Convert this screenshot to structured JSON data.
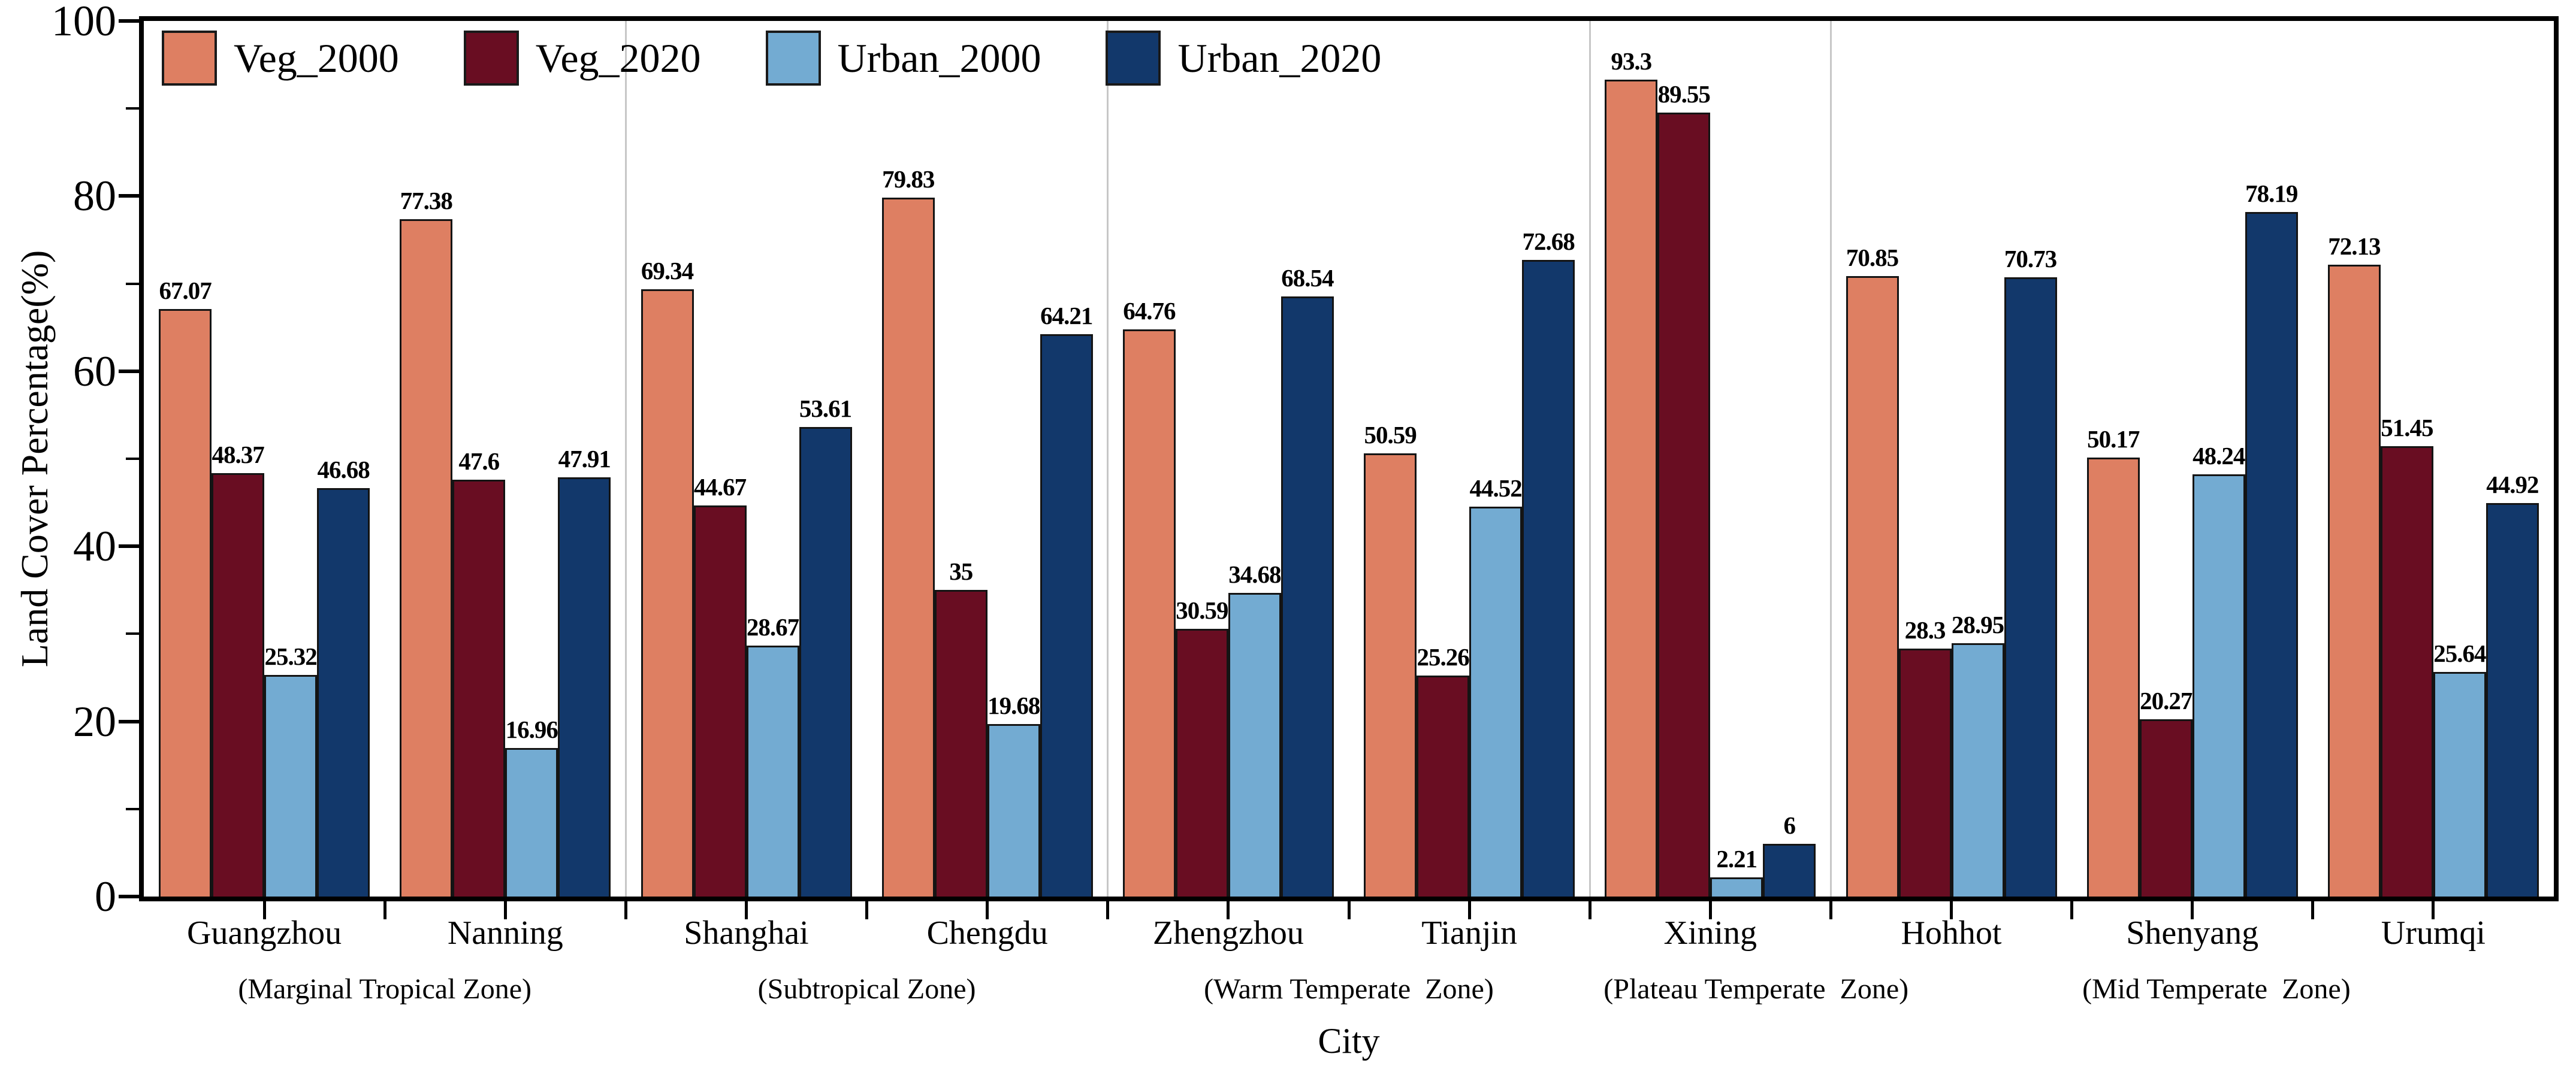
{
  "chart_data": {
    "type": "bar",
    "title": "",
    "xlabel": "City",
    "ylabel": "Land Cover Percentage(%)",
    "ylim": [
      0,
      100
    ],
    "y_major_ticks": [
      0,
      20,
      40,
      60,
      80,
      100
    ],
    "y_minor_ticks": [
      10,
      30,
      50,
      70,
      90
    ],
    "grid": false,
    "legend_position": "inside-top-left",
    "categories": [
      "Guangzhou",
      "Nanning",
      "Shanghai",
      "Chengdu",
      "Zhengzhou",
      "Tianjin",
      "Xining",
      "Hohhot",
      "Shenyang",
      "Urumqi"
    ],
    "series": [
      {
        "name": "Veg_2000",
        "color": "#de7f62",
        "values": [
          67.07,
          77.38,
          69.34,
          79.83,
          64.76,
          50.59,
          93.3,
          70.85,
          50.17,
          72.13
        ]
      },
      {
        "name": "Veg_2020",
        "color": "#690d22",
        "values": [
          48.37,
          47.6,
          44.67,
          35,
          30.59,
          25.26,
          89.55,
          28.3,
          20.27,
          51.45
        ]
      },
      {
        "name": "Urban_2000",
        "color": "#73abd2",
        "values": [
          25.32,
          16.96,
          28.67,
          19.68,
          34.68,
          44.52,
          2.21,
          28.95,
          48.24,
          25.64
        ]
      },
      {
        "name": "Urban_2020",
        "color": "#12386b",
        "values": [
          46.68,
          47.91,
          53.61,
          64.21,
          68.54,
          72.68,
          6,
          70.73,
          78.19,
          44.92
        ]
      }
    ],
    "zones": [
      {
        "label": "(Marginal Tropical Zone)",
        "center_slot": 1
      },
      {
        "label": "(Subtropical Zone)",
        "center_slot": 3
      },
      {
        "label": "(Warm Temperate  Zone)",
        "center_slot": 5
      },
      {
        "label": "(Plateau Temperate  Zone)",
        "center_slot": 6.69
      },
      {
        "label": "(Mid Temperate  Zone)",
        "center_slot": 8.6
      }
    ],
    "separator_boundaries": [
      2,
      4,
      6,
      7
    ],
    "separator_color": "#c7c7c7",
    "axis_color": "#000000"
  }
}
